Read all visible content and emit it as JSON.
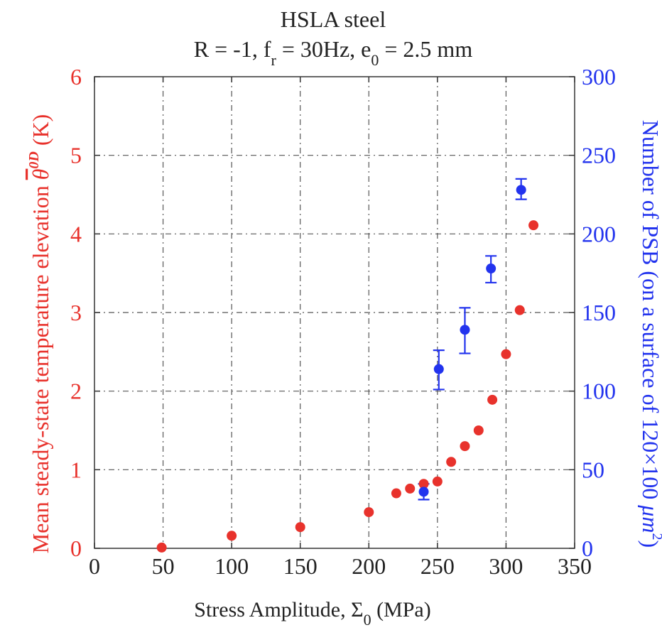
{
  "chart_data": {
    "type": "scatter",
    "title": "HSLA steel",
    "subtitle": {
      "part1": "R = -1, f",
      "sub1": "r",
      "part2": " = 30Hz, e",
      "sub2": "0",
      "part3": " = 2.5 mm"
    },
    "xlabel": {
      "main": "Stress Amplitude, Σ",
      "sub": "0",
      "tail": " (MPa)"
    },
    "ylabel_left": {
      "main": "Mean steady-state temperature elevation ",
      "symbol": "θ",
      "sup": "0D",
      "tail": " (K)"
    },
    "ylabel_right": {
      "main": "Number of PSB (on a surface of 120×100 ",
      "unit": "μm",
      "sup": "2",
      "tail": ")"
    },
    "xlim": [
      0,
      350
    ],
    "ylim_left": [
      0,
      6
    ],
    "ylim_right": [
      0,
      300
    ],
    "x_ticks": [
      "0",
      "50",
      "100",
      "150",
      "200",
      "250",
      "300",
      "350"
    ],
    "y_left_ticks": [
      "0",
      "1",
      "2",
      "3",
      "4",
      "5",
      "6"
    ],
    "y_right_ticks": [
      "0",
      "50",
      "100",
      "150",
      "200",
      "250",
      "300"
    ],
    "grid": true,
    "colors": {
      "temperature": "#e8322c",
      "psb": "#2233ee",
      "frame": "#333333"
    },
    "series": [
      {
        "axis": "left",
        "color": "#e8322c",
        "x": [
          49,
          100,
          150,
          200,
          220,
          230,
          240,
          250,
          260,
          270,
          280,
          290,
          300,
          310,
          320
        ],
        "y": [
          0.01,
          0.16,
          0.27,
          0.46,
          0.7,
          0.76,
          0.82,
          0.85,
          1.1,
          1.3,
          1.5,
          1.89,
          2.47,
          3.03,
          4.11
        ]
      },
      {
        "axis": "right",
        "color": "#2233ee",
        "x": [
          240,
          251,
          270,
          289,
          311
        ],
        "y": [
          36,
          114,
          139,
          178,
          228
        ],
        "err_low": [
          31,
          101,
          124,
          169,
          222
        ],
        "err_high": [
          41,
          126,
          153,
          186,
          235
        ]
      }
    ]
  }
}
